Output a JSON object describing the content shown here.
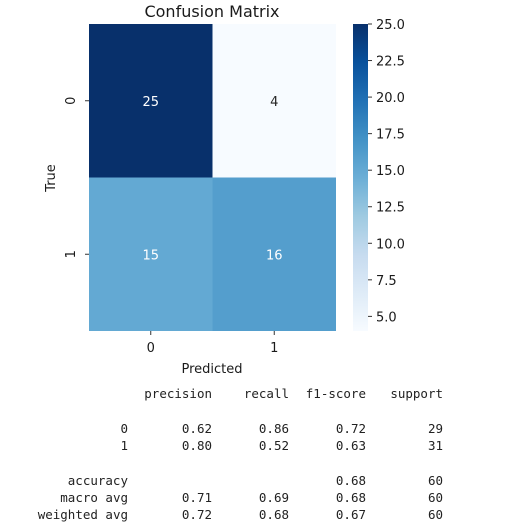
{
  "chart_data": {
    "type": "heatmap",
    "title": "Confusion Matrix",
    "xlabel": "Predicted",
    "ylabel": "True",
    "x_categories": [
      "0",
      "1"
    ],
    "y_categories": [
      "0",
      "1"
    ],
    "values": [
      [
        25,
        4
      ],
      [
        15,
        16
      ]
    ],
    "colormap": "Blues",
    "colorbar": {
      "range": [
        4.0,
        25.0
      ],
      "ticks": [
        "5.0",
        "7.5",
        "10.0",
        "12.5",
        "15.0",
        "17.5",
        "20.0",
        "22.5",
        "25.0"
      ]
    }
  },
  "report": {
    "headers": [
      "precision",
      "recall",
      "f1-score",
      "support"
    ],
    "rows": [
      {
        "label": "0",
        "values": [
          "0.62",
          "0.86",
          "0.72",
          "29"
        ]
      },
      {
        "label": "1",
        "values": [
          "0.80",
          "0.52",
          "0.63",
          "31"
        ]
      },
      {
        "label": "accuracy",
        "values": [
          "",
          "",
          "0.68",
          "60"
        ]
      },
      {
        "label": "macro avg",
        "values": [
          "0.71",
          "0.69",
          "0.68",
          "60"
        ]
      },
      {
        "label": "weighted avg",
        "values": [
          "0.72",
          "0.68",
          "0.67",
          "60"
        ]
      }
    ]
  }
}
